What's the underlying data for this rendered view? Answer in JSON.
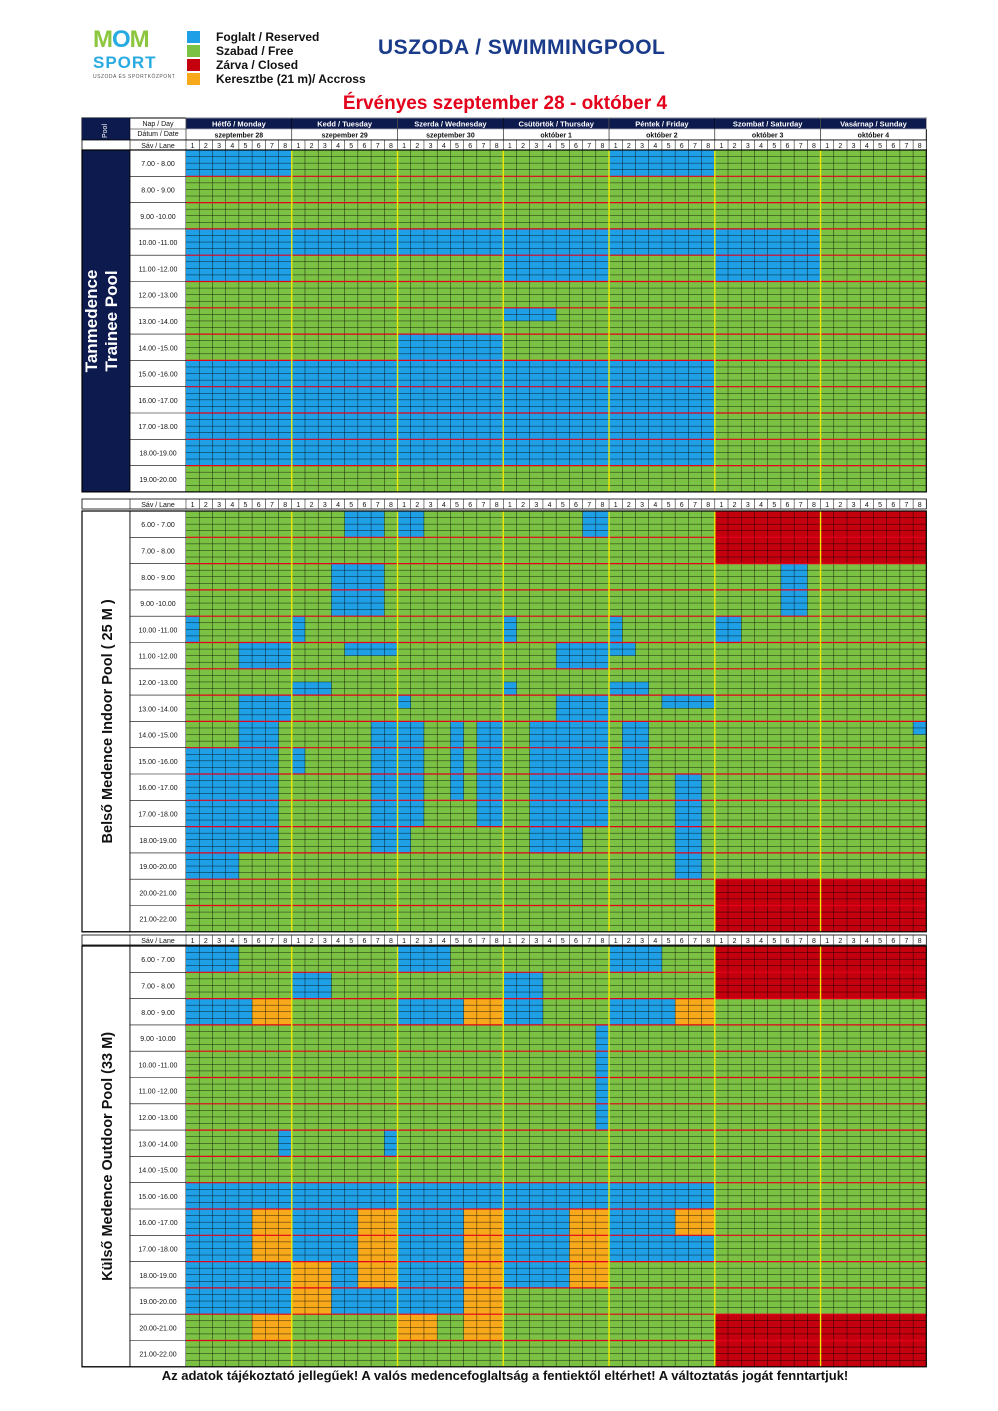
{
  "logo": {
    "line1_a": "M",
    "line1_b": "O",
    "line1_c": "M",
    "line2": "SPORT",
    "line3": "USZODA ÉS SPORTKÖZPONT"
  },
  "legend": [
    {
      "label": "Foglalt / Reserved",
      "color": "#1fa0e6"
    },
    {
      "label": "Szabad / Free",
      "color": "#7bc143"
    },
    {
      "label": "Zárva / Closed",
      "color": "#c4000f"
    },
    {
      "label": "Keresztbe (21 m)/ Accross",
      "color": "#f7a81b"
    }
  ],
  "title": "USZODA / SWIMMINGPOOL",
  "valid_text": "Érvényes szeptember 28 - október 4",
  "footer": "Az adatok tájékoztató jellegűek! A valós medencefoglaltság a fentiektől eltérhet! A változtatás jogát fenntartjuk!",
  "header": {
    "pool_label": "Pool",
    "day_label": "Nap / Day",
    "date_label": "Dátum / Date",
    "lane_label": "Sáv / Lane",
    "days": [
      {
        "name": "Hétfő / Monday",
        "date": "szeptember 28"
      },
      {
        "name": "Kedd / Tuesday",
        "date": "szepember 29"
      },
      {
        "name": "Szerda / Wednesday",
        "date": "szeptember 30"
      },
      {
        "name": "Csütörtök / Thursday",
        "date": "október 1"
      },
      {
        "name": "Péntek / Friday",
        "date": "október 2"
      },
      {
        "name": "Szombat / Saturday",
        "date": "október 3"
      },
      {
        "name": "Vasárnap / Sunday",
        "date": "október 4"
      }
    ],
    "lanes": [
      "1",
      "2",
      "3",
      "4",
      "5",
      "6",
      "7",
      "8"
    ]
  },
  "colors": {
    "reserved": "#1fa0e6",
    "free": "#7bc143",
    "closed": "#c4000f",
    "across": "#f7a81b",
    "navy": "#0d1a4e",
    "hour_line": "#e3001b",
    "day_line": "#f0e600"
  },
  "pools": [
    {
      "name_line1": "Tanmedence",
      "name_line2": "Trainee Pool",
      "dark": true,
      "times": [
        "7.00 -  8.00",
        "8.00 -  9.00",
        "9.00 -10.00",
        "10.00 -11.00",
        "11.00 -12.00",
        "12.00 -13.00",
        "13.00 -14.00",
        "14.00 -15.00",
        "15.00 -16.00",
        "16.00 -17.00",
        "17.00 -18.00",
        "18.00-19.00",
        "19.00-20.00"
      ],
      "blocks": [
        [
          [
            0,
            0,
            8,
            0,
            2
          ],
          [
            10,
            0,
            8,
            7,
            10
          ],
          [
            11,
            0,
            8,
            11,
            12
          ],
          [
            10,
            0,
            8,
            13,
            23
          ]
        ],
        [
          [
            4,
            1,
            8,
            7,
            10
          ],
          [
            13,
            0,
            8,
            13,
            23
          ]
        ],
        [
          [
            3,
            1,
            8,
            7,
            10
          ],
          [
            11,
            1,
            8,
            11,
            12
          ],
          [
            15,
            0,
            8,
            13,
            23
          ]
        ],
        [
          [
            2,
            3,
            0,
            8,
            7,
            9
          ],
          [
            7,
            7,
            0,
            8,
            13,
            25
          ],
          [
            1,
            0,
            8,
            7,
            10
          ],
          [
            4,
            7,
            0,
            8,
            13,
            10
          ]
        ],
        [
          [
            0,
            0,
            8,
            0,
            2
          ],
          [
            10,
            0,
            8,
            7,
            10
          ]
        ],
        [
          [
            10,
            0,
            8,
            7,
            10
          ]
        ],
        []
      ]
    },
    {
      "name_line1": "Belső Medence  Indoor Pool ( 25 M )",
      "name_line2": "",
      "dark": false,
      "times": [
        "6.00 -  7.00",
        "7.00 -  8.00",
        "8.00 -  9.00",
        "9.00 -10.00",
        "10.00 -11.00",
        "11.00 -12.00",
        "12.00 -13.00",
        "13.00 -14.00",
        "14.00 -15.00",
        "15.00 -16.00",
        "16.00 -17.00",
        "17.00 -18.00",
        "18.00-19.00",
        "19.00-20.00",
        "20.00-21.00",
        "21.00-22.00"
      ],
      "blocks": [
        [
          [
            0,
            0,
            1,
            8,
            4
          ],
          [
            0,
            4,
            3,
            12,
            12
          ],
          [
            4,
            4,
            2,
            9,
            7
          ],
          [
            4,
            6,
            2,
            8,
            12
          ],
          [
            0,
            1,
            1,
            11,
            4
          ],
          [
            2,
            2,
            1,
            12,
            5
          ],
          [
            4,
            7,
            1,
            16,
            2
          ],
          [
            5,
            8,
            1,
            11,
            8
          ]
        ],
        [
          [
            5,
            7,
            3,
            0,
            4
          ],
          [
            5,
            4,
            3,
            0,
            8
          ],
          [
            5,
            2,
            2,
            7,
            14
          ],
          [
            5,
            4,
            2,
            11,
            8
          ],
          [
            7,
            0,
            1,
            8,
            1
          ],
          [
            7,
            6,
            2,
            9,
            3
          ],
          [
            6,
            0,
            1,
            13,
            4
          ],
          [
            7,
            1,
            1,
            13,
            2
          ],
          [
            8,
            0,
            1,
            20,
            4
          ]
        ],
        [
          [
            1,
            0,
            2,
            0,
            2
          ],
          [
            2,
            0,
            1,
            9,
            3
          ],
          [
            2,
            6,
            1,
            12,
            14
          ],
          [
            2,
            6,
            2,
            8,
            4
          ],
          [
            1,
            3,
            3,
            12,
            11
          ],
          [
            3,
            7,
            1,
            9,
            4
          ]
        ],
        [
          [
            3,
            0,
            1,
            8,
            1
          ],
          [
            3,
            1,
            1,
            10,
            1
          ],
          [
            3,
            0,
            1,
            14,
            12
          ],
          [
            3,
            2,
            1,
            18,
            5
          ],
          [
            5,
            2,
            5,
            6,
            12
          ],
          [
            6,
            2,
            2,
            11,
            6
          ],
          [
            4,
            6,
            1,
            12,
            9
          ],
          [
            4,
            4,
            3,
            11,
            7
          ]
        ],
        [
          [
            4,
            7,
            2,
            0,
            6
          ],
          [
            5,
            4,
            2,
            12,
            6
          ],
          [
            6,
            2,
            2,
            0,
            10
          ],
          [
            6,
            6,
            2,
            9,
            6
          ],
          [
            5,
            0,
            1,
            8,
            1
          ],
          [
            6,
            0,
            1,
            15,
            6
          ],
          [
            7,
            0,
            1,
            16,
            3
          ],
          [
            4,
            4,
            1,
            20,
            8
          ]
        ],
        [
          [
            0,
            0,
            5,
            0,
            2
          ],
          [
            0,
            0,
            0,
            0,
            0
          ],
          [
            3,
            2,
            1,
            7,
            7
          ],
          [
            3,
            4,
            2,
            14,
            6
          ]
        ],
        [
          [
            5,
            2,
            2,
            0,
            2
          ],
          [
            0,
            7,
            1,
            7,
            1
          ],
          [
            0,
            7,
            0,
            0,
            0
          ]
        ]
      ],
      "closed": [
        [
          5,
          0,
          2
        ],
        [
          6,
          0,
          2
        ],
        [
          5,
          14,
          2
        ],
        [
          6,
          14,
          2
        ]
      ]
    },
    {
      "name_line1": "Külső Medence Outdoor Pool (33 M)",
      "name_line2": "",
      "dark": false,
      "times": [
        "6.00 -  7.00",
        "7.00 -  8.00",
        "8.00 -  9.00",
        "9.00 -10.00",
        "10.00 -11.00",
        "11.00 -12.00",
        "12.00 -13.00",
        "13.00 -14.00",
        "14.00 -15.00",
        "15.00 -16.00",
        "16.00 -17.00",
        "17.00 -18.00",
        "18.00-19.00",
        "19.00-20.00",
        "20.00-21.00",
        "21.00-22.00"
      ],
      "closed": [
        [
          5,
          0,
          2
        ],
        [
          6,
          0,
          2
        ],
        [
          5,
          14,
          2
        ],
        [
          6,
          14,
          2
        ]
      ]
    }
  ]
}
